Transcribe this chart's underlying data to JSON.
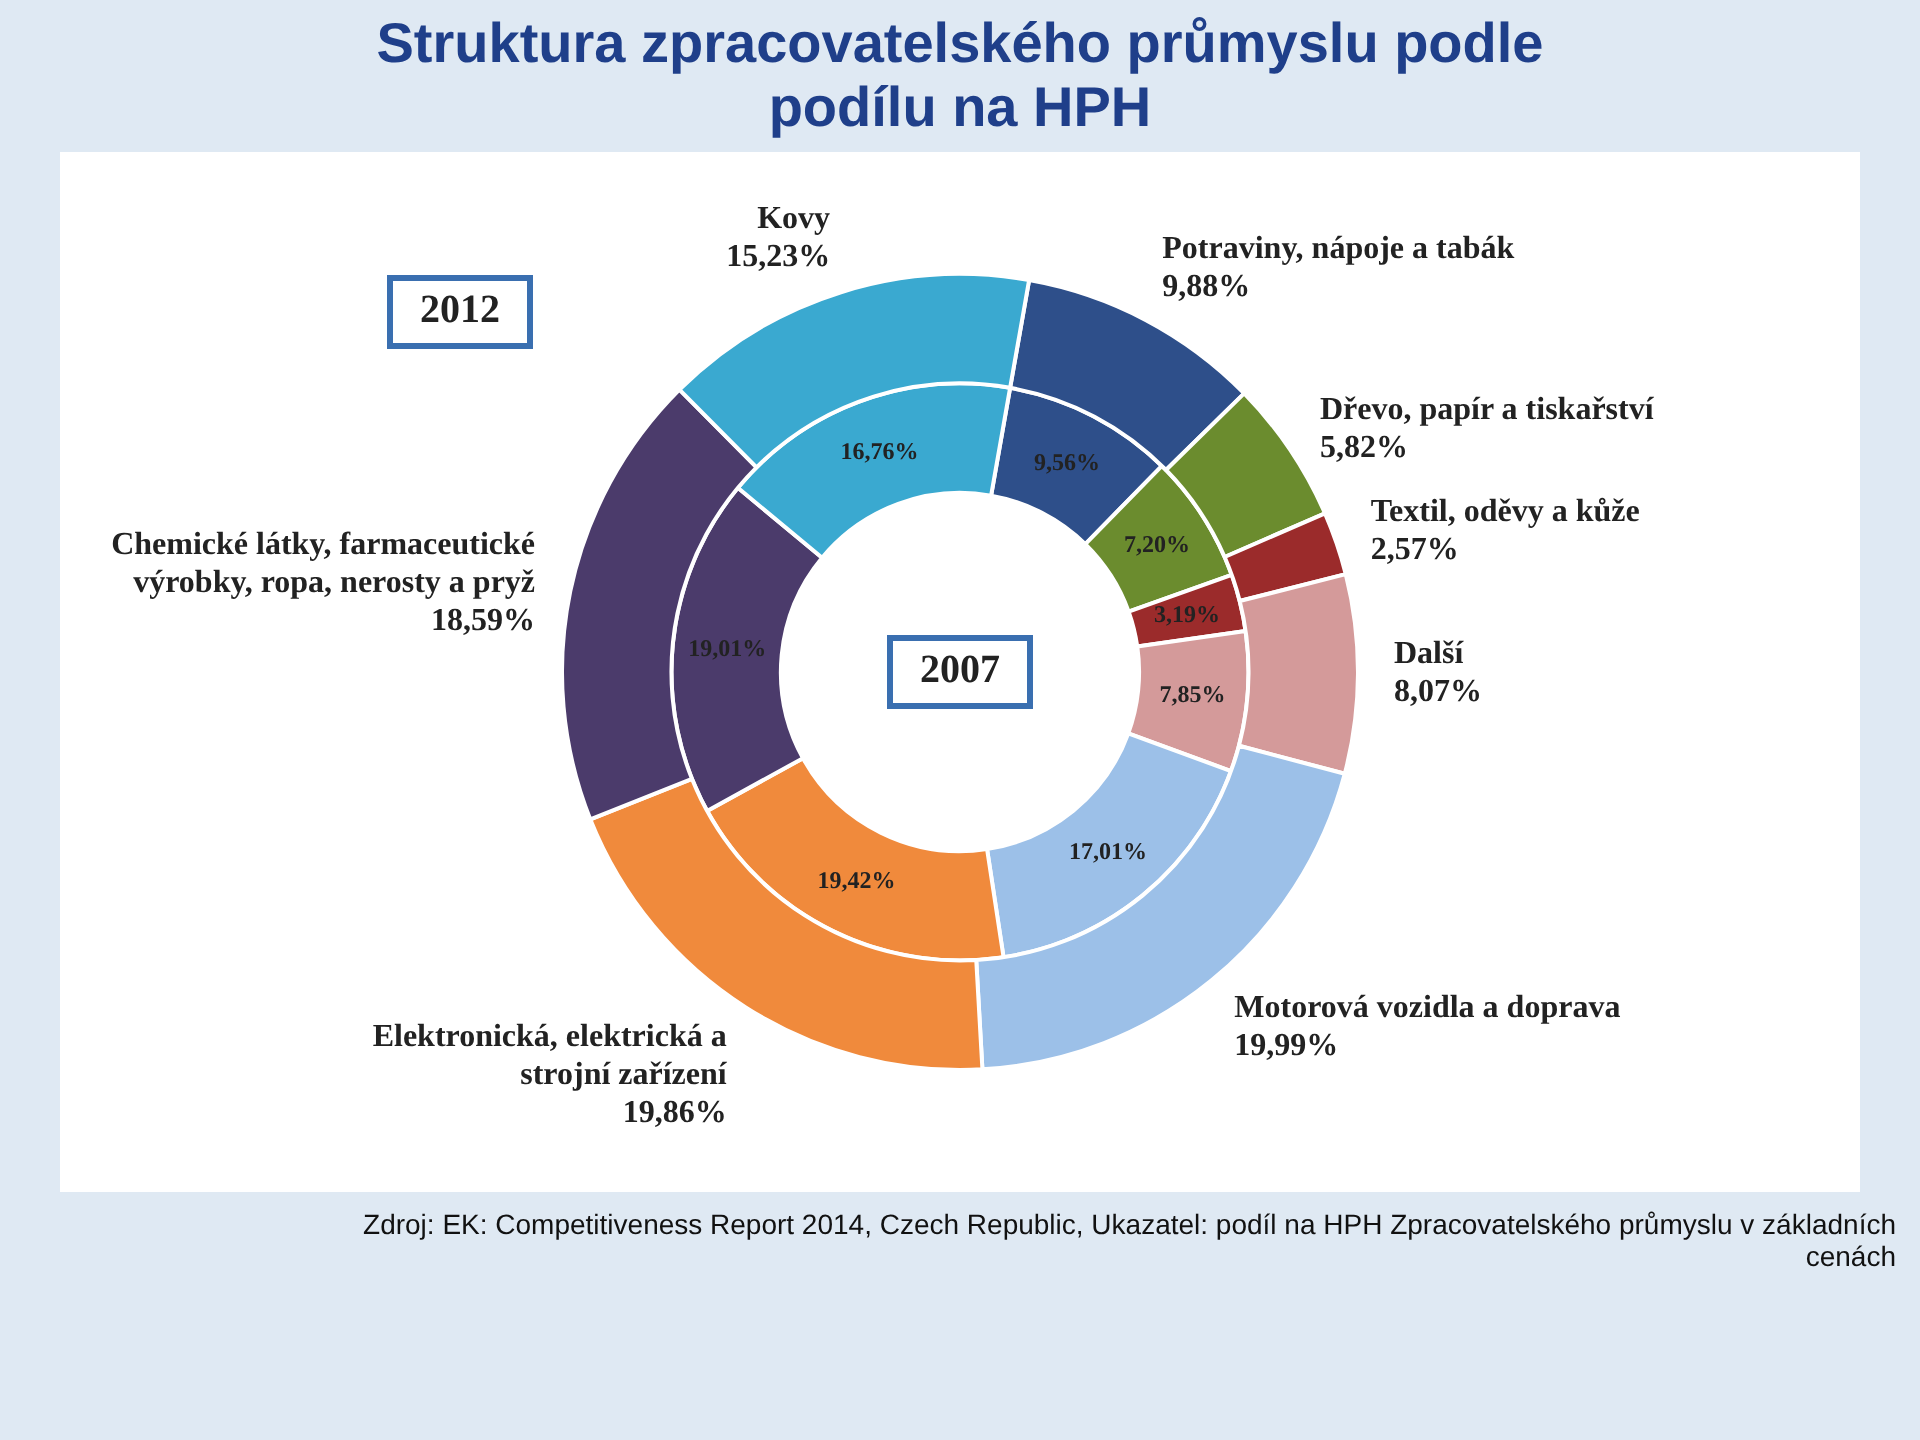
{
  "chart_data": {
    "type": "donut",
    "title": "Struktura zpracovatelského průmyslu podle podílu na HPH",
    "categories": [
      "Potraviny, nápoje a tabák",
      "Dřevo, papír a tiskařství",
      "Textil, oděvy a kůže",
      "Další",
      "Motorová vozidla a doprava",
      "Elektronická, elektrická a strojní zařízení",
      "Chemické látky, farmaceutické výrobky, ropa, nerosty a pryž",
      "Kovy"
    ],
    "colors": [
      "#2e4f8a",
      "#6b8c2e",
      "#9b2b2b",
      "#d49a9a",
      "#9cc0e8",
      "#f08a3c",
      "#4b3b6b",
      "#3aa9d0"
    ],
    "series": [
      {
        "name": "2012",
        "values": [
          9.88,
          5.82,
          2.57,
          8.07,
          19.99,
          19.86,
          18.59,
          15.23
        ],
        "value_labels": [
          "9,88%",
          "5,82%",
          "2,57%",
          "8,07%",
          "19,99%",
          "19,86%",
          "18,59%",
          "15,23%"
        ]
      },
      {
        "name": "2007",
        "values": [
          9.56,
          7.2,
          3.19,
          7.85,
          17.01,
          19.42,
          19.01,
          16.76
        ],
        "value_labels": [
          "9,56%",
          "7,20%",
          "3,19%",
          "7,85%",
          "17,01%",
          "19,42%",
          "19,01%",
          "16,76%"
        ]
      }
    ],
    "data_labels": true,
    "annotations": [
      "Zdroj: EK: Competitiveness Report 2014, Czech Republic, Ukazatel: podíl na HPH Zpracovatelského průmyslu v základních cenách"
    ]
  }
}
